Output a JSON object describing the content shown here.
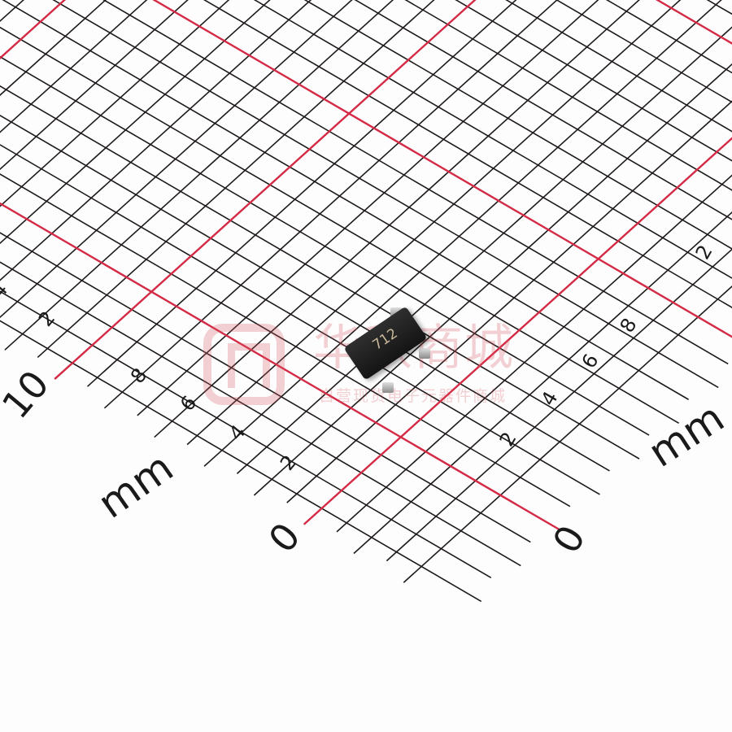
{
  "image": {
    "subject": "SOT-23 package component on millimeter graph paper",
    "chip_marking": "712",
    "left_ruler": {
      "labels": [
        "0",
        "2",
        "4",
        "6",
        "8",
        "10"
      ],
      "unit": "mm",
      "edge_label": "4"
    },
    "right_ruler": {
      "labels": [
        "0",
        "2",
        "4",
        "6",
        "8",
        "2"
      ],
      "unit": "mm"
    },
    "watermark": {
      "title": "华秋商城",
      "subtitle": "自营现货电子元器件商城"
    },
    "colors": {
      "grid": "#1e1a1a",
      "major_grid": "#d42a45",
      "chip": "#1c1c1c",
      "watermark": "#d65a64"
    }
  }
}
